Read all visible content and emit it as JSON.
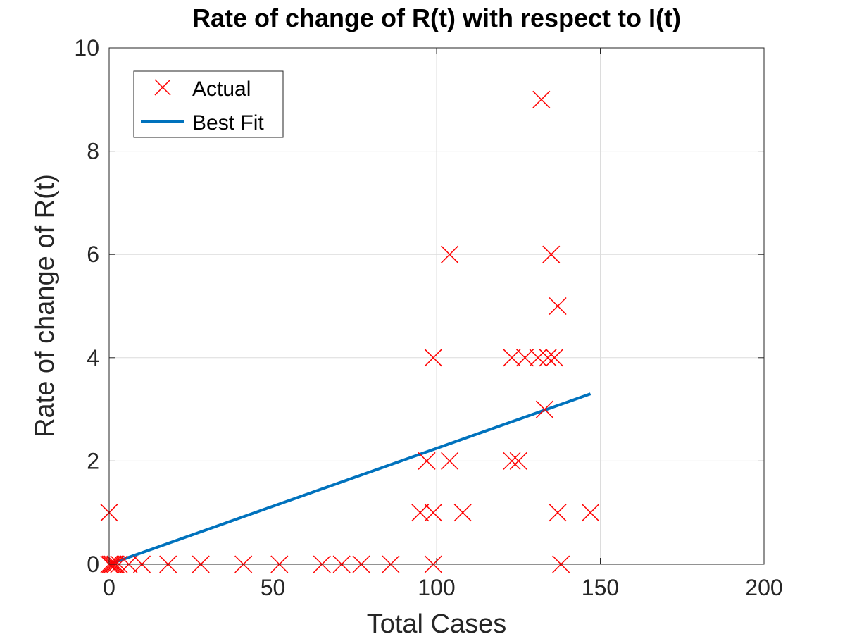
{
  "chart_data": {
    "type": "scatter",
    "title": "Rate of change of R(t) with respect to I(t)",
    "xlabel": "Total Cases",
    "ylabel": "Rate of change of R(t)",
    "xlim": [
      0,
      200
    ],
    "ylim": [
      0,
      10
    ],
    "xticks": [
      0,
      50,
      100,
      150,
      200
    ],
    "yticks": [
      0,
      2,
      4,
      6,
      8,
      10
    ],
    "grid": true,
    "legend_position": "top-left",
    "series": [
      {
        "name": "Actual",
        "kind": "scatter",
        "marker": "x",
        "color": "#ff0000",
        "points": [
          [
            0,
            1
          ],
          [
            0,
            0
          ],
          [
            0.5,
            0
          ],
          [
            1,
            0
          ],
          [
            1.5,
            0
          ],
          [
            2,
            0
          ],
          [
            3,
            0
          ],
          [
            6,
            0
          ],
          [
            10,
            0
          ],
          [
            18,
            0
          ],
          [
            28,
            0
          ],
          [
            41,
            0
          ],
          [
            52,
            0
          ],
          [
            65,
            0
          ],
          [
            71,
            0
          ],
          [
            77,
            0
          ],
          [
            86,
            0
          ],
          [
            95,
            1
          ],
          [
            97,
            2
          ],
          [
            99,
            4
          ],
          [
            99,
            0
          ],
          [
            99,
            1
          ],
          [
            104,
            6
          ],
          [
            104,
            2
          ],
          [
            108,
            1
          ],
          [
            123,
            4
          ],
          [
            123,
            2
          ],
          [
            125,
            2
          ],
          [
            127,
            4
          ],
          [
            131,
            4
          ],
          [
            132,
            9
          ],
          [
            133,
            3
          ],
          [
            134,
            4
          ],
          [
            135,
            6
          ],
          [
            136,
            4
          ],
          [
            137,
            5
          ],
          [
            137,
            1
          ],
          [
            138,
            0
          ],
          [
            147,
            1
          ]
        ]
      },
      {
        "name": "Best Fit",
        "kind": "line",
        "color": "#0072bd",
        "x": [
          0,
          147
        ],
        "y": [
          0,
          3.3
        ]
      }
    ]
  }
}
